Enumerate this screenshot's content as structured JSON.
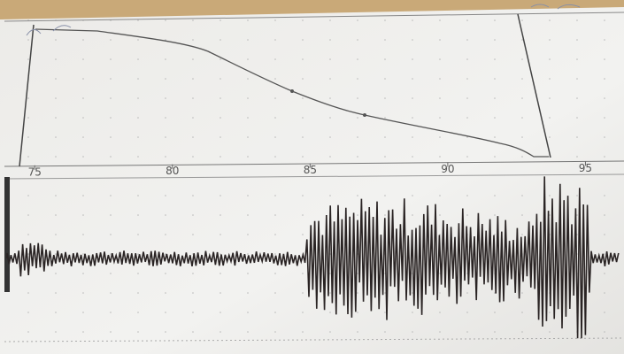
{
  "axis": {
    "range": [
      73.9,
      96.4
    ],
    "ticks": [
      75,
      80,
      85,
      90,
      95
    ]
  }
}
